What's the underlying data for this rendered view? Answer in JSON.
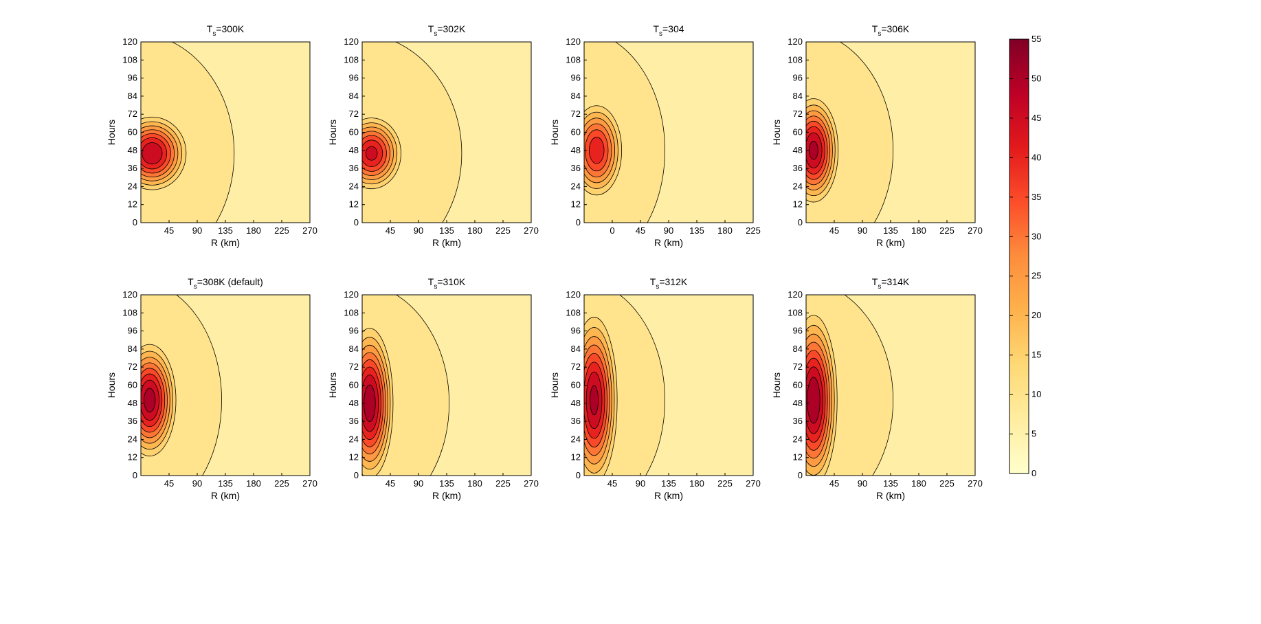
{
  "chart_data": {
    "type": "heatmap",
    "colormap": [
      "#ffffcc",
      "#ffeda0",
      "#fed976",
      "#feb24c",
      "#fd8d3c",
      "#fc4e2a",
      "#e31a1c",
      "#bd0026",
      "#800026"
    ],
    "contour_color": "#000000",
    "colorbar": {
      "min": 0,
      "max": 55,
      "ticks": [
        "0",
        "5",
        "10",
        "15",
        "20",
        "25",
        "30",
        "35",
        "40",
        "45",
        "50",
        "55"
      ]
    },
    "ylabel": "Hours",
    "xlabel": "R (km)",
    "ylim": [
      0,
      120
    ],
    "yticks": [
      "0",
      "12",
      "24",
      "36",
      "48",
      "60",
      "72",
      "84",
      "96",
      "108",
      "120"
    ],
    "panels": [
      {
        "title_main": "T",
        "title_sub": "s",
        "title_rest": "=300K",
        "xticks": [
          "45",
          "90",
          "135",
          "180",
          "225",
          "270"
        ],
        "xlim": [
          0,
          270
        ],
        "core": {
          "r": 18,
          "t": 46,
          "peak": 50,
          "rw": 45,
          "tw": 20
        },
        "outer_band": {
          "level": 10,
          "extent_r": 160
        }
      },
      {
        "title_main": "T",
        "title_sub": "s",
        "title_rest": "=302K",
        "xticks": [
          "45",
          "90",
          "135",
          "180",
          "225",
          "270"
        ],
        "xlim": [
          0,
          270
        ],
        "core": {
          "r": 15,
          "t": 46,
          "peak": 47,
          "rw": 40,
          "tw": 20
        },
        "outer_band": {
          "level": 10,
          "extent_r": 170
        }
      },
      {
        "title_main": "T",
        "title_sub": "s",
        "title_rest": "=304",
        "xticks": [
          "0",
          "45",
          "90",
          "135",
          "180",
          "225"
        ],
        "xlim": [
          -45,
          225
        ],
        "core": {
          "r": -25,
          "t": 48,
          "peak": 44,
          "rw": 35,
          "tw": 26
        },
        "outer_band": {
          "level": 10,
          "extent_r": 140
        }
      },
      {
        "title_main": "T",
        "title_sub": "s",
        "title_rest": "=306K",
        "xticks": [
          "45",
          "90",
          "135",
          "180",
          "225",
          "270"
        ],
        "xlim": [
          0,
          270
        ],
        "core": {
          "r": 12,
          "t": 48,
          "peak": 52,
          "rw": 32,
          "tw": 28
        },
        "outer_band": {
          "level": 10,
          "extent_r": 150
        }
      },
      {
        "title_main": "T",
        "title_sub": "s",
        "title_rest": "=308K (default)",
        "xticks": [
          "45",
          "90",
          "135",
          "180",
          "225",
          "270"
        ],
        "xlim": [
          0,
          270
        ],
        "core": {
          "r": 14,
          "t": 50,
          "peak": 53,
          "rw": 34,
          "tw": 30
        },
        "outer_band": {
          "level": 10,
          "extent_r": 140
        }
      },
      {
        "title_main": "T",
        "title_sub": "s",
        "title_rest": "=310K",
        "xticks": [
          "45",
          "90",
          "135",
          "180",
          "225",
          "270"
        ],
        "xlim": [
          0,
          270
        ],
        "core": {
          "r": 12,
          "t": 48,
          "peak": 54,
          "rw": 30,
          "tw": 40
        },
        "outer_band": {
          "level": 10,
          "extent_r": 150
        }
      },
      {
        "title_main": "T",
        "title_sub": "s",
        "title_rest": "=312K",
        "xticks": [
          "45",
          "90",
          "135",
          "180",
          "225",
          "270"
        ],
        "xlim": [
          0,
          270
        ],
        "core": {
          "r": 16,
          "t": 50,
          "peak": 52,
          "rw": 30,
          "tw": 45
        },
        "outer_band": {
          "level": 10,
          "extent_r": 140
        }
      },
      {
        "title_main": "T",
        "title_sub": "s",
        "title_rest": "=314K",
        "xticks": [
          "45",
          "90",
          "135",
          "180",
          "225",
          "270"
        ],
        "xlim": [
          0,
          270
        ],
        "core": {
          "r": 12,
          "t": 50,
          "peak": 55,
          "rw": 30,
          "tw": 45
        },
        "outer_band": {
          "level": 10,
          "extent_r": 150
        }
      }
    ]
  }
}
